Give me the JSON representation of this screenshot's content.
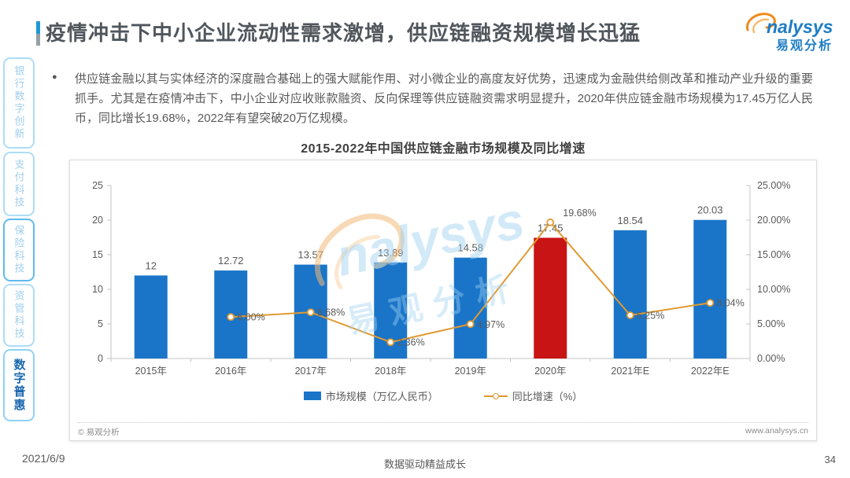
{
  "page": {
    "date": "2021/6/9",
    "footer_slogan": "数据驱动精益成长",
    "page_number": "34"
  },
  "header": {
    "title": "疫情冲击下中小企业流动性需求激增，供应链融资规模增长迅猛",
    "logo": {
      "brand": "nalysys",
      "brand_cn": "易观分析"
    }
  },
  "sidebar": {
    "tabs": [
      {
        "label": "银行数字创新"
      },
      {
        "label": "支付科技"
      },
      {
        "label": "保险科技"
      },
      {
        "label": "资管科技"
      },
      {
        "label": "数字普惠"
      }
    ]
  },
  "body_text": {
    "bullet": "供应链金融以其与实体经济的深度融合基础上的强大赋能作用、对小微企业的高度友好优势，迅速成为金融供给侧改革和推动产业升级的重要抓手。尤其是在疫情冲击下，中小企业对应收账款融资、反向保理等供应链融资需求明显提升，2020年供应链金融市场规模为17.45万亿人民币，同比增长19.68%，2022年有望突破20万亿规模。"
  },
  "chart": {
    "title": "2015-2022年中国供应链金融市场规模及同比增速",
    "copyright": "© 易观分析",
    "website": "www.analysys.cn",
    "watermark": {
      "text": "nalysys",
      "text_cn": "易观分析"
    }
  },
  "chart_data": {
    "type": "bar",
    "combo": "bar+line",
    "title": "2015-2022年中国供应链金融市场规模及同比增速",
    "categories": [
      "2015年",
      "2016年",
      "2017年",
      "2018年",
      "2019年",
      "2020年",
      "2021年E",
      "2022年E"
    ],
    "series": [
      {
        "name": "市场规模（万亿人民币）",
        "type": "bar",
        "values": [
          12,
          12.72,
          13.57,
          13.89,
          14.58,
          17.45,
          18.54,
          20.03
        ],
        "labels": [
          "12",
          "12.72",
          "13.57",
          "13.89",
          "14.58",
          "17.45",
          "18.54",
          "20.03"
        ],
        "color": "#1a75c9",
        "highlight_index": 5,
        "highlight_color": "#c81414"
      },
      {
        "name": "同比增速（%）",
        "type": "line",
        "values": [
          null,
          6.0,
          6.68,
          2.36,
          4.97,
          19.68,
          6.25,
          8.04
        ],
        "labels": [
          "",
          "6.00%",
          "6.68%",
          "2.36%",
          "4.97%",
          "19.68%",
          "6.25%",
          "8.04%"
        ],
        "color": "#e09a33"
      }
    ],
    "left_axis": {
      "min": 0,
      "max": 25,
      "ticks": [
        0,
        5,
        10,
        15,
        20,
        25
      ]
    },
    "right_axis": {
      "min": 0,
      "max": 25,
      "ticks": [
        0,
        5,
        10,
        15,
        20,
        25
      ],
      "tick_labels": [
        "0.00%",
        "5.00%",
        "10.00%",
        "15.00%",
        "20.00%",
        "25.00%"
      ]
    },
    "legend": [
      {
        "label": "市场规模（万亿人民币）",
        "marker": "bar"
      },
      {
        "label": "同比增速（%）",
        "marker": "line"
      }
    ],
    "legend_position": "bottom",
    "grid": false
  }
}
